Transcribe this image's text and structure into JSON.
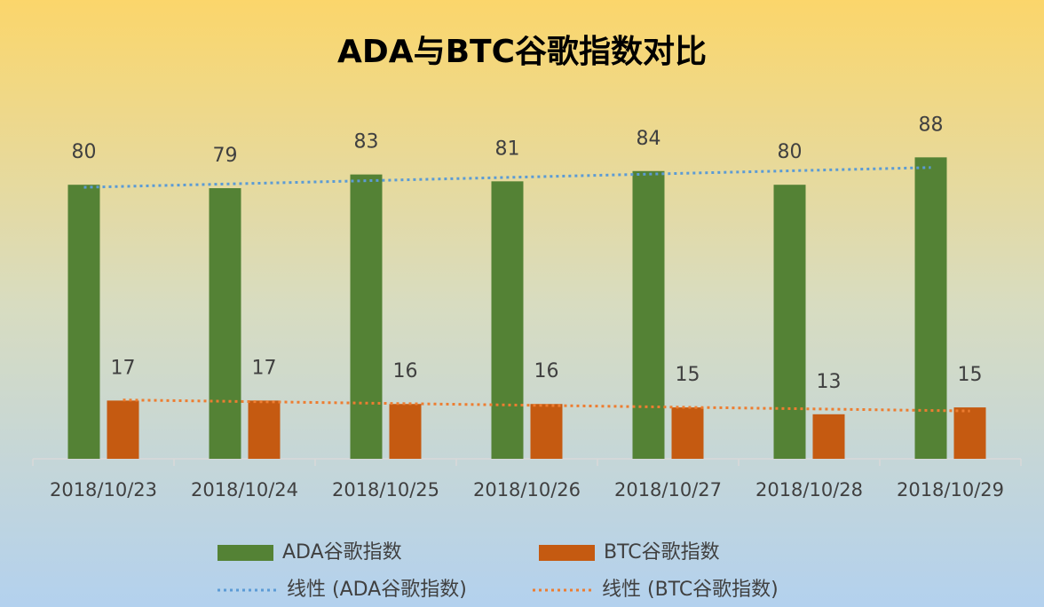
{
  "chart_data": {
    "type": "bar",
    "title": "ADA与BTC谷歌指数对比",
    "categories": [
      "2018/10/23",
      "2018/10/24",
      "2018/10/25",
      "2018/10/26",
      "2018/10/27",
      "2018/10/28",
      "2018/10/29"
    ],
    "series": [
      {
        "name": "ADA谷歌指数",
        "color": "#548235",
        "values": [
          80,
          79,
          83,
          81,
          84,
          80,
          88
        ],
        "trendline": "线性 (ADA谷歌指数)",
        "trendline_color": "#5b9bd5"
      },
      {
        "name": "BTC谷歌指数",
        "color": "#c55a11",
        "values": [
          17,
          17,
          16,
          16,
          15,
          13,
          15
        ],
        "trendline": "线性 (BTC谷歌指数)",
        "trendline_color": "#ed7d31"
      }
    ],
    "ylim": [
      0,
      100
    ],
    "legend": "bottom"
  }
}
